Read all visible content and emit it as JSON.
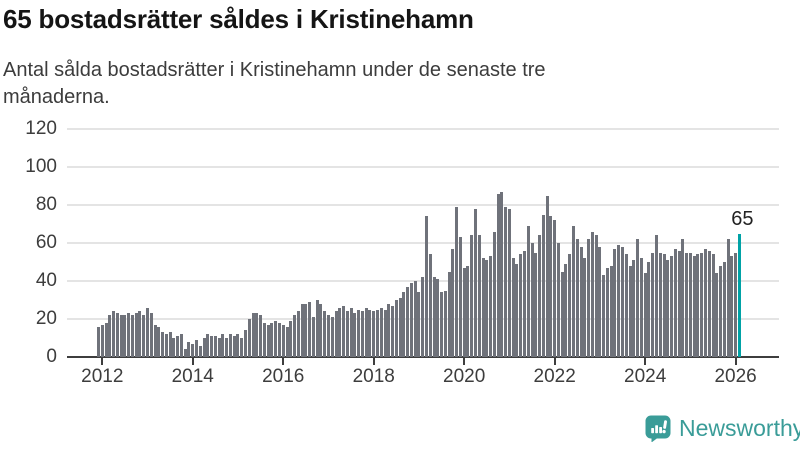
{
  "header": {
    "title": "65 bostadsrätter såldes i Kristinehamn",
    "subtitle_lines": [
      "Antal sålda bostadsrätter i Kristinehamn under de senaste tre",
      "månaderna."
    ]
  },
  "chart_data": {
    "type": "bar",
    "title": "65 bostadsrätter såldes i Kristinehamn",
    "ylabel": "Antal sålda bostadsrätter",
    "ylim": [
      0,
      120
    ],
    "y_ticks": [
      0,
      20,
      40,
      60,
      80,
      100,
      120
    ],
    "x_tick_labels": [
      "2012",
      "2014",
      "2016",
      "2018",
      "2020",
      "2022",
      "2024",
      "2026"
    ],
    "grid": true,
    "legend": "none",
    "start_month": "2011-12",
    "bar_color": "#6f727a",
    "values": [
      16,
      17,
      18,
      22,
      24,
      23,
      22,
      22,
      23,
      22,
      23,
      24,
      22,
      26,
      23,
      17,
      16,
      13,
      12,
      13,
      10,
      11,
      12,
      4,
      8,
      7,
      9,
      6,
      10,
      12,
      11,
      11,
      10,
      12,
      10,
      12,
      11,
      12,
      10,
      14,
      20,
      23,
      23,
      22,
      18,
      17,
      18,
      19,
      18,
      17,
      16,
      19,
      22,
      24,
      28,
      28,
      29,
      21,
      30,
      28,
      24,
      22,
      21,
      24,
      26,
      27,
      24,
      26,
      23,
      25,
      24,
      26,
      25,
      24,
      25,
      26,
      25,
      28,
      27,
      30,
      31,
      34,
      37,
      39,
      40,
      34,
      42,
      74,
      54,
      42,
      41,
      34,
      35,
      45,
      57,
      79,
      63,
      47,
      48,
      64,
      78,
      64,
      52,
      51,
      53,
      66,
      86,
      87,
      79,
      78,
      52,
      49,
      54,
      56,
      69,
      60,
      55,
      64,
      75,
      85,
      74,
      72,
      60,
      45,
      49,
      54,
      69,
      62,
      58,
      52,
      62,
      66,
      64,
      58,
      43,
      47,
      48,
      57,
      59,
      58,
      54,
      48,
      51,
      62,
      52,
      44,
      50,
      55,
      64,
      55,
      54,
      51,
      53,
      57,
      56,
      62,
      55,
      55,
      53,
      54,
      55,
      57,
      56,
      54,
      44,
      48,
      50,
      62,
      53,
      55,
      65
    ],
    "highlight": {
      "index": 170,
      "value": 65,
      "label": "65",
      "color": "#00a2a6"
    }
  },
  "branding": {
    "logo_text": "Newsworthy",
    "logo_color": "#3a9c98"
  }
}
